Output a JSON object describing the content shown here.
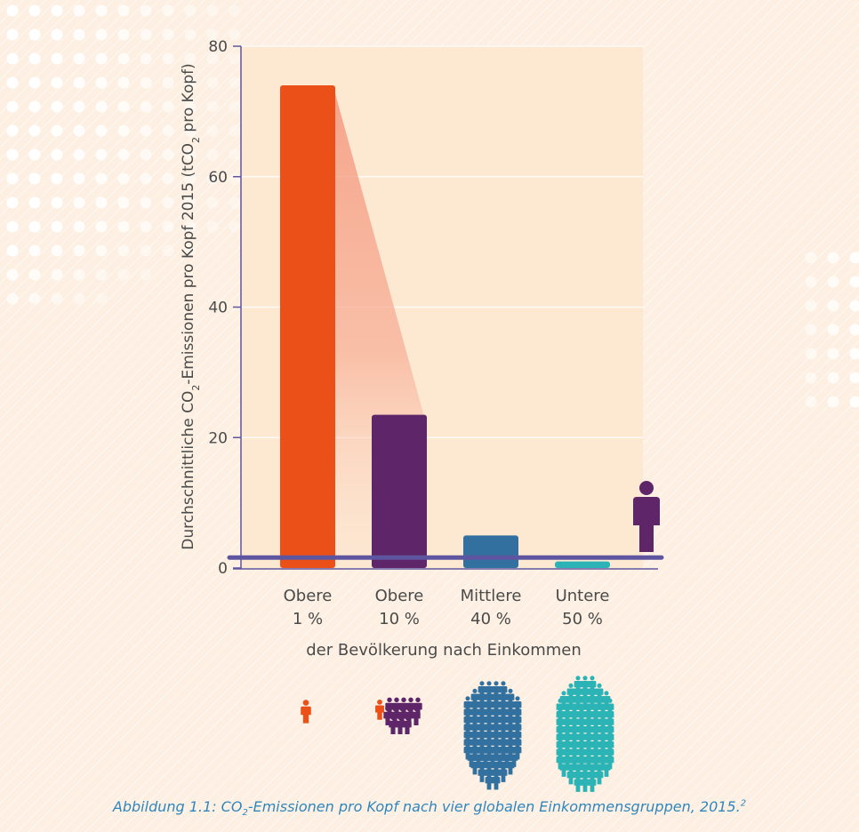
{
  "chart_data": {
    "type": "bar",
    "ylabel_parts": {
      "pre": "Durchschnittliche CO",
      "sub": "2",
      "mid": "-Emissionen pro Kopf 2015 (tCO",
      "sub2": "2",
      "post": " pro Kopf)"
    },
    "xlabel": "der Bevölkerung nach Einkommen",
    "ylim": [
      0,
      80
    ],
    "yticks": [
      0,
      20,
      40,
      60,
      80
    ],
    "grid": true,
    "categories": [
      {
        "line1": "Obere",
        "line2": "1 %"
      },
      {
        "line1": "Obere",
        "line2": "10 %"
      },
      {
        "line1": "Mittlere",
        "line2": "40 %"
      },
      {
        "line1": "Untere",
        "line2": "50 %"
      }
    ],
    "values": [
      74,
      23.5,
      5,
      1
    ],
    "colors": [
      "#eb5018",
      "#5e2568",
      "#32719f",
      "#2bb3b5"
    ],
    "reference_line_value": 1.6,
    "reference_line_color": "#5e55a0",
    "person_icon_color": "#5e2568"
  },
  "caption": {
    "pre": "Abbildung 1.1: CO",
    "sub": "2",
    "post": "-Emissionen pro Kopf nach vier globalen Einkommensgruppen, 2015.",
    "sup": "2"
  }
}
